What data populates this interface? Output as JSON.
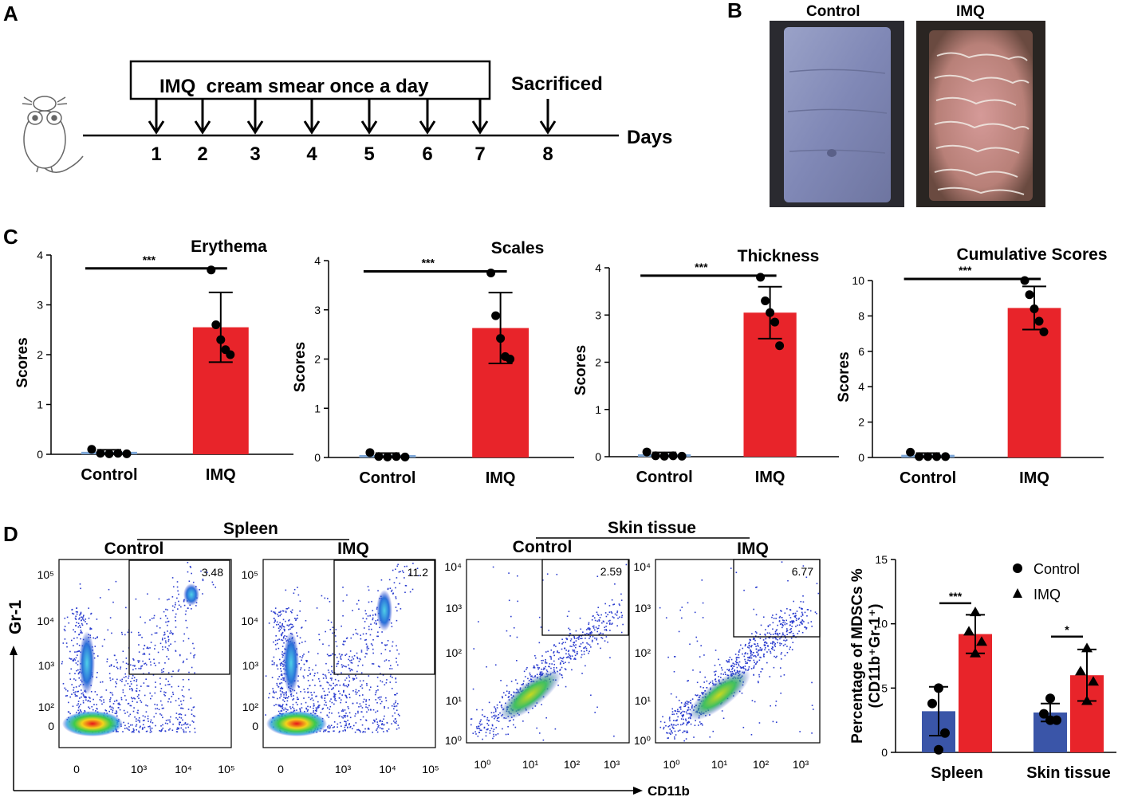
{
  "panel_labels": {
    "a": "A",
    "b": "B",
    "c": "C",
    "d": "D"
  },
  "timeline": {
    "box_text": "IMQ  cream smear once a day",
    "sacrificed": "Sacrificed",
    "axis_label": "Days",
    "days": [
      "1",
      "2",
      "3",
      "4",
      "5",
      "6",
      "7",
      "8"
    ],
    "mouse_icon": "mouse-icon"
  },
  "photos": {
    "control_label": "Control",
    "imq_label": "IMQ"
  },
  "colors": {
    "control": "#3a55a8",
    "imq": "#e8242a",
    "control_line": "#7fa8d8"
  },
  "chart_data": [
    {
      "type": "bar",
      "title": "Erythema",
      "ylabel": "Scores",
      "categories": [
        "Control",
        "IMQ"
      ],
      "values": [
        0.05,
        2.55
      ],
      "errors": [
        0.04,
        0.7
      ],
      "points": [
        [
          0.1,
          0.02,
          0.01,
          0.02,
          0.01
        ],
        [
          3.7,
          2.6,
          2.3,
          2.1,
          2.0
        ]
      ],
      "ylim": [
        0,
        4
      ],
      "yticks": [
        "0",
        "1",
        "2",
        "3",
        "4"
      ],
      "significance": "***"
    },
    {
      "type": "bar",
      "title": "Scales",
      "ylabel": "Scores",
      "categories": [
        "Control",
        "IMQ"
      ],
      "values": [
        0.05,
        2.63
      ],
      "errors": [
        0.04,
        0.72
      ],
      "points": [
        [
          0.1,
          0.02,
          0.01,
          0.02,
          0.01
        ],
        [
          3.75,
          2.88,
          2.42,
          2.05,
          2.0
        ]
      ],
      "ylim": [
        0,
        4
      ],
      "yticks": [
        "0",
        "1",
        "2",
        "3",
        "4"
      ],
      "significance": "***"
    },
    {
      "type": "bar",
      "title": "Thickness",
      "ylabel": "Scores",
      "categories": [
        "Control",
        "IMQ"
      ],
      "values": [
        0.05,
        3.05
      ],
      "errors": [
        0.04,
        0.55
      ],
      "points": [
        [
          0.1,
          0.02,
          0.01,
          0.02,
          0.01
        ],
        [
          3.8,
          3.3,
          3.05,
          2.85,
          2.35
        ]
      ],
      "ylim": [
        0,
        4
      ],
      "yticks": [
        "0",
        "1",
        "2",
        "3",
        "4"
      ],
      "significance": "***"
    },
    {
      "type": "bar",
      "title": "Cumulative Scores",
      "ylabel": "Scores",
      "categories": [
        "Control",
        "IMQ"
      ],
      "values": [
        0.15,
        8.45
      ],
      "errors": [
        0.1,
        1.22
      ],
      "points": [
        [
          0.3,
          0.05,
          0.05,
          0.05,
          0.05
        ],
        [
          10.0,
          9.2,
          8.4,
          7.7,
          7.1
        ]
      ],
      "ylim": [
        0,
        10
      ],
      "yticks": [
        "0",
        "2",
        "4",
        "6",
        "8",
        "10"
      ],
      "significance": "***"
    },
    {
      "type": "bar",
      "title": "",
      "ylabel": "Percentage of MDSCs %",
      "ylabel2": "(CD11b⁺Gr-1⁺)",
      "categories": [
        "Spleen",
        "Skin tissue"
      ],
      "series": [
        {
          "name": "Control",
          "marker": "circle",
          "values": [
            3.2,
            3.1
          ],
          "errors": [
            1.9,
            0.7
          ],
          "points": [
            [
              5.0,
              3.8,
              1.5,
              0.2
            ],
            [
              4.2,
              3.0,
              2.5,
              2.5
            ]
          ]
        },
        {
          "name": "IMQ",
          "marker": "triangle",
          "values": [
            9.2,
            6.0
          ],
          "errors": [
            1.5,
            2.0
          ],
          "points": [
            [
              10.9,
              9.4,
              8.6,
              7.7
            ],
            [
              8.1,
              6.3,
              5.5,
              4.0
            ]
          ]
        }
      ],
      "ylim": [
        0,
        15
      ],
      "yticks": [
        "0",
        "5",
        "10",
        "15"
      ],
      "significance": [
        "***",
        "*"
      ]
    }
  ],
  "flow": {
    "group_spleen": "Spleen",
    "group_skin": "Skin tissue",
    "x_axis_label": "CD11b",
    "y_axis_label": "Gr-1",
    "plots": [
      {
        "title": "Control",
        "gate_value": "3.48",
        "yticks": [
          "10⁵",
          "10⁴",
          "10³",
          "10²",
          "0"
        ],
        "xticks": [
          "0",
          "10³",
          "10⁴",
          "10⁵"
        ]
      },
      {
        "title": "IMQ",
        "gate_value": "11.2",
        "yticks": [
          "10⁵",
          "10⁴",
          "10³",
          "10²",
          "0"
        ],
        "xticks": [
          "0",
          "10³",
          "10⁴",
          "10⁵"
        ]
      },
      {
        "title": "Control",
        "gate_value": "2.59",
        "yticks": [
          "10⁴",
          "10³",
          "10²",
          "10¹",
          "10⁰"
        ],
        "xticks": [
          "10⁰",
          "10¹",
          "10²",
          "10³"
        ]
      },
      {
        "title": "IMQ",
        "gate_value": "6.77",
        "yticks": [
          "10⁴",
          "10³",
          "10²",
          "10¹",
          "10⁰"
        ],
        "xticks": [
          "10⁰",
          "10¹",
          "10²",
          "10³"
        ]
      }
    ]
  }
}
